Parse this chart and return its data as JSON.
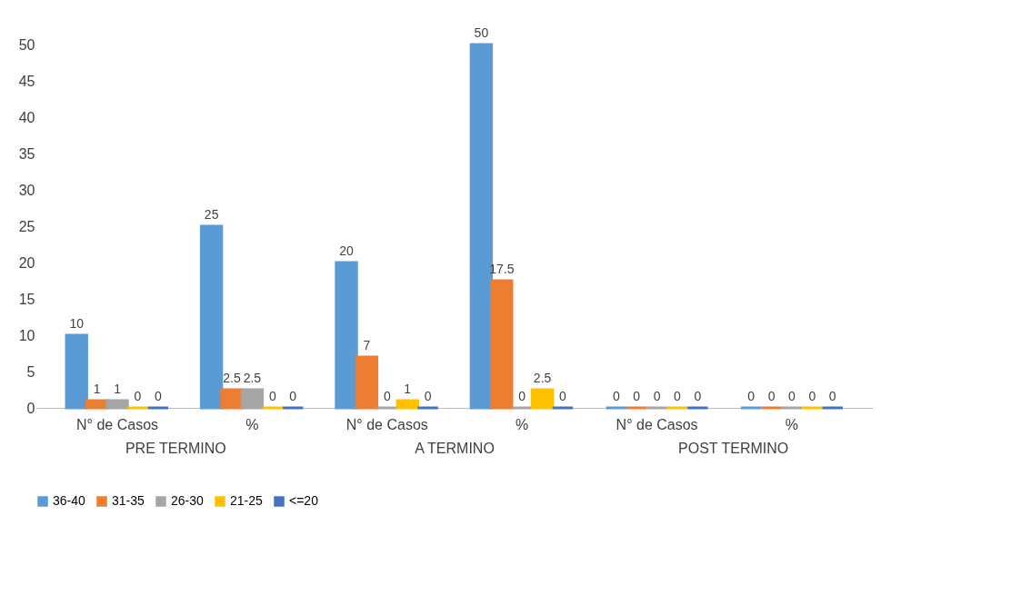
{
  "chart_data": {
    "type": "bar",
    "categories": [
      "N° de Casos",
      "%",
      "N° de Casos",
      "%",
      "N° de Casos",
      "%"
    ],
    "series": [
      {
        "name": "36-40",
        "color": "#5b9bd5",
        "values": [
          10,
          25,
          20,
          50,
          0,
          0
        ]
      },
      {
        "name": "31-35",
        "color": "#ed7d31",
        "values": [
          1,
          2.5,
          7,
          17.5,
          0,
          0
        ]
      },
      {
        "name": "26-30",
        "color": "#a5a5a5",
        "values": [
          1,
          2.5,
          0,
          0,
          0,
          0
        ]
      },
      {
        "name": "21-25",
        "color": "#ffc000",
        "values": [
          0,
          0,
          1,
          2.5,
          0,
          0
        ]
      },
      {
        "name": "<=20",
        "color": "#4472c4",
        "values": [
          0,
          0,
          0,
          0,
          0,
          0
        ]
      }
    ],
    "annotations": [
      "PRE TERMINO",
      "A TERMINO",
      "POST TERMINO"
    ],
    "ylim": [
      0,
      50
    ],
    "yticks": [
      0,
      5,
      10,
      15,
      20,
      25,
      30,
      35,
      40,
      45,
      50
    ],
    "data_labels": true,
    "grid": false,
    "legend": "bottom"
  }
}
